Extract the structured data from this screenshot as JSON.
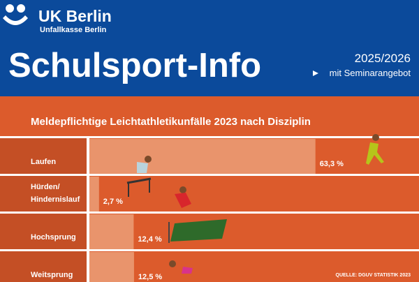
{
  "header": {
    "brand": "UK Berlin",
    "brand_sub": "Unfallkasse Berlin",
    "title": "Schulsport-Info",
    "year": "2025/2026",
    "note": "mit Seminarangebot"
  },
  "chart_data": {
    "type": "bar",
    "orientation": "horizontal",
    "title": "Meldepflichtige Leichtathletikunfälle 2023 nach Disziplin",
    "categories": [
      "Laufen",
      "Hürden/\nHindernislauf",
      "Hochsprung",
      "Weitsprung"
    ],
    "values": [
      63.3,
      2.7,
      12.4,
      12.5
    ],
    "value_labels": [
      "63,3 %",
      "2,7 %",
      "12,4 %",
      "12,5 %"
    ],
    "color": "#e9946c",
    "xlim": [
      0,
      92.3
    ],
    "source": "QUELLE: DGUV STATISTIK 2023"
  }
}
